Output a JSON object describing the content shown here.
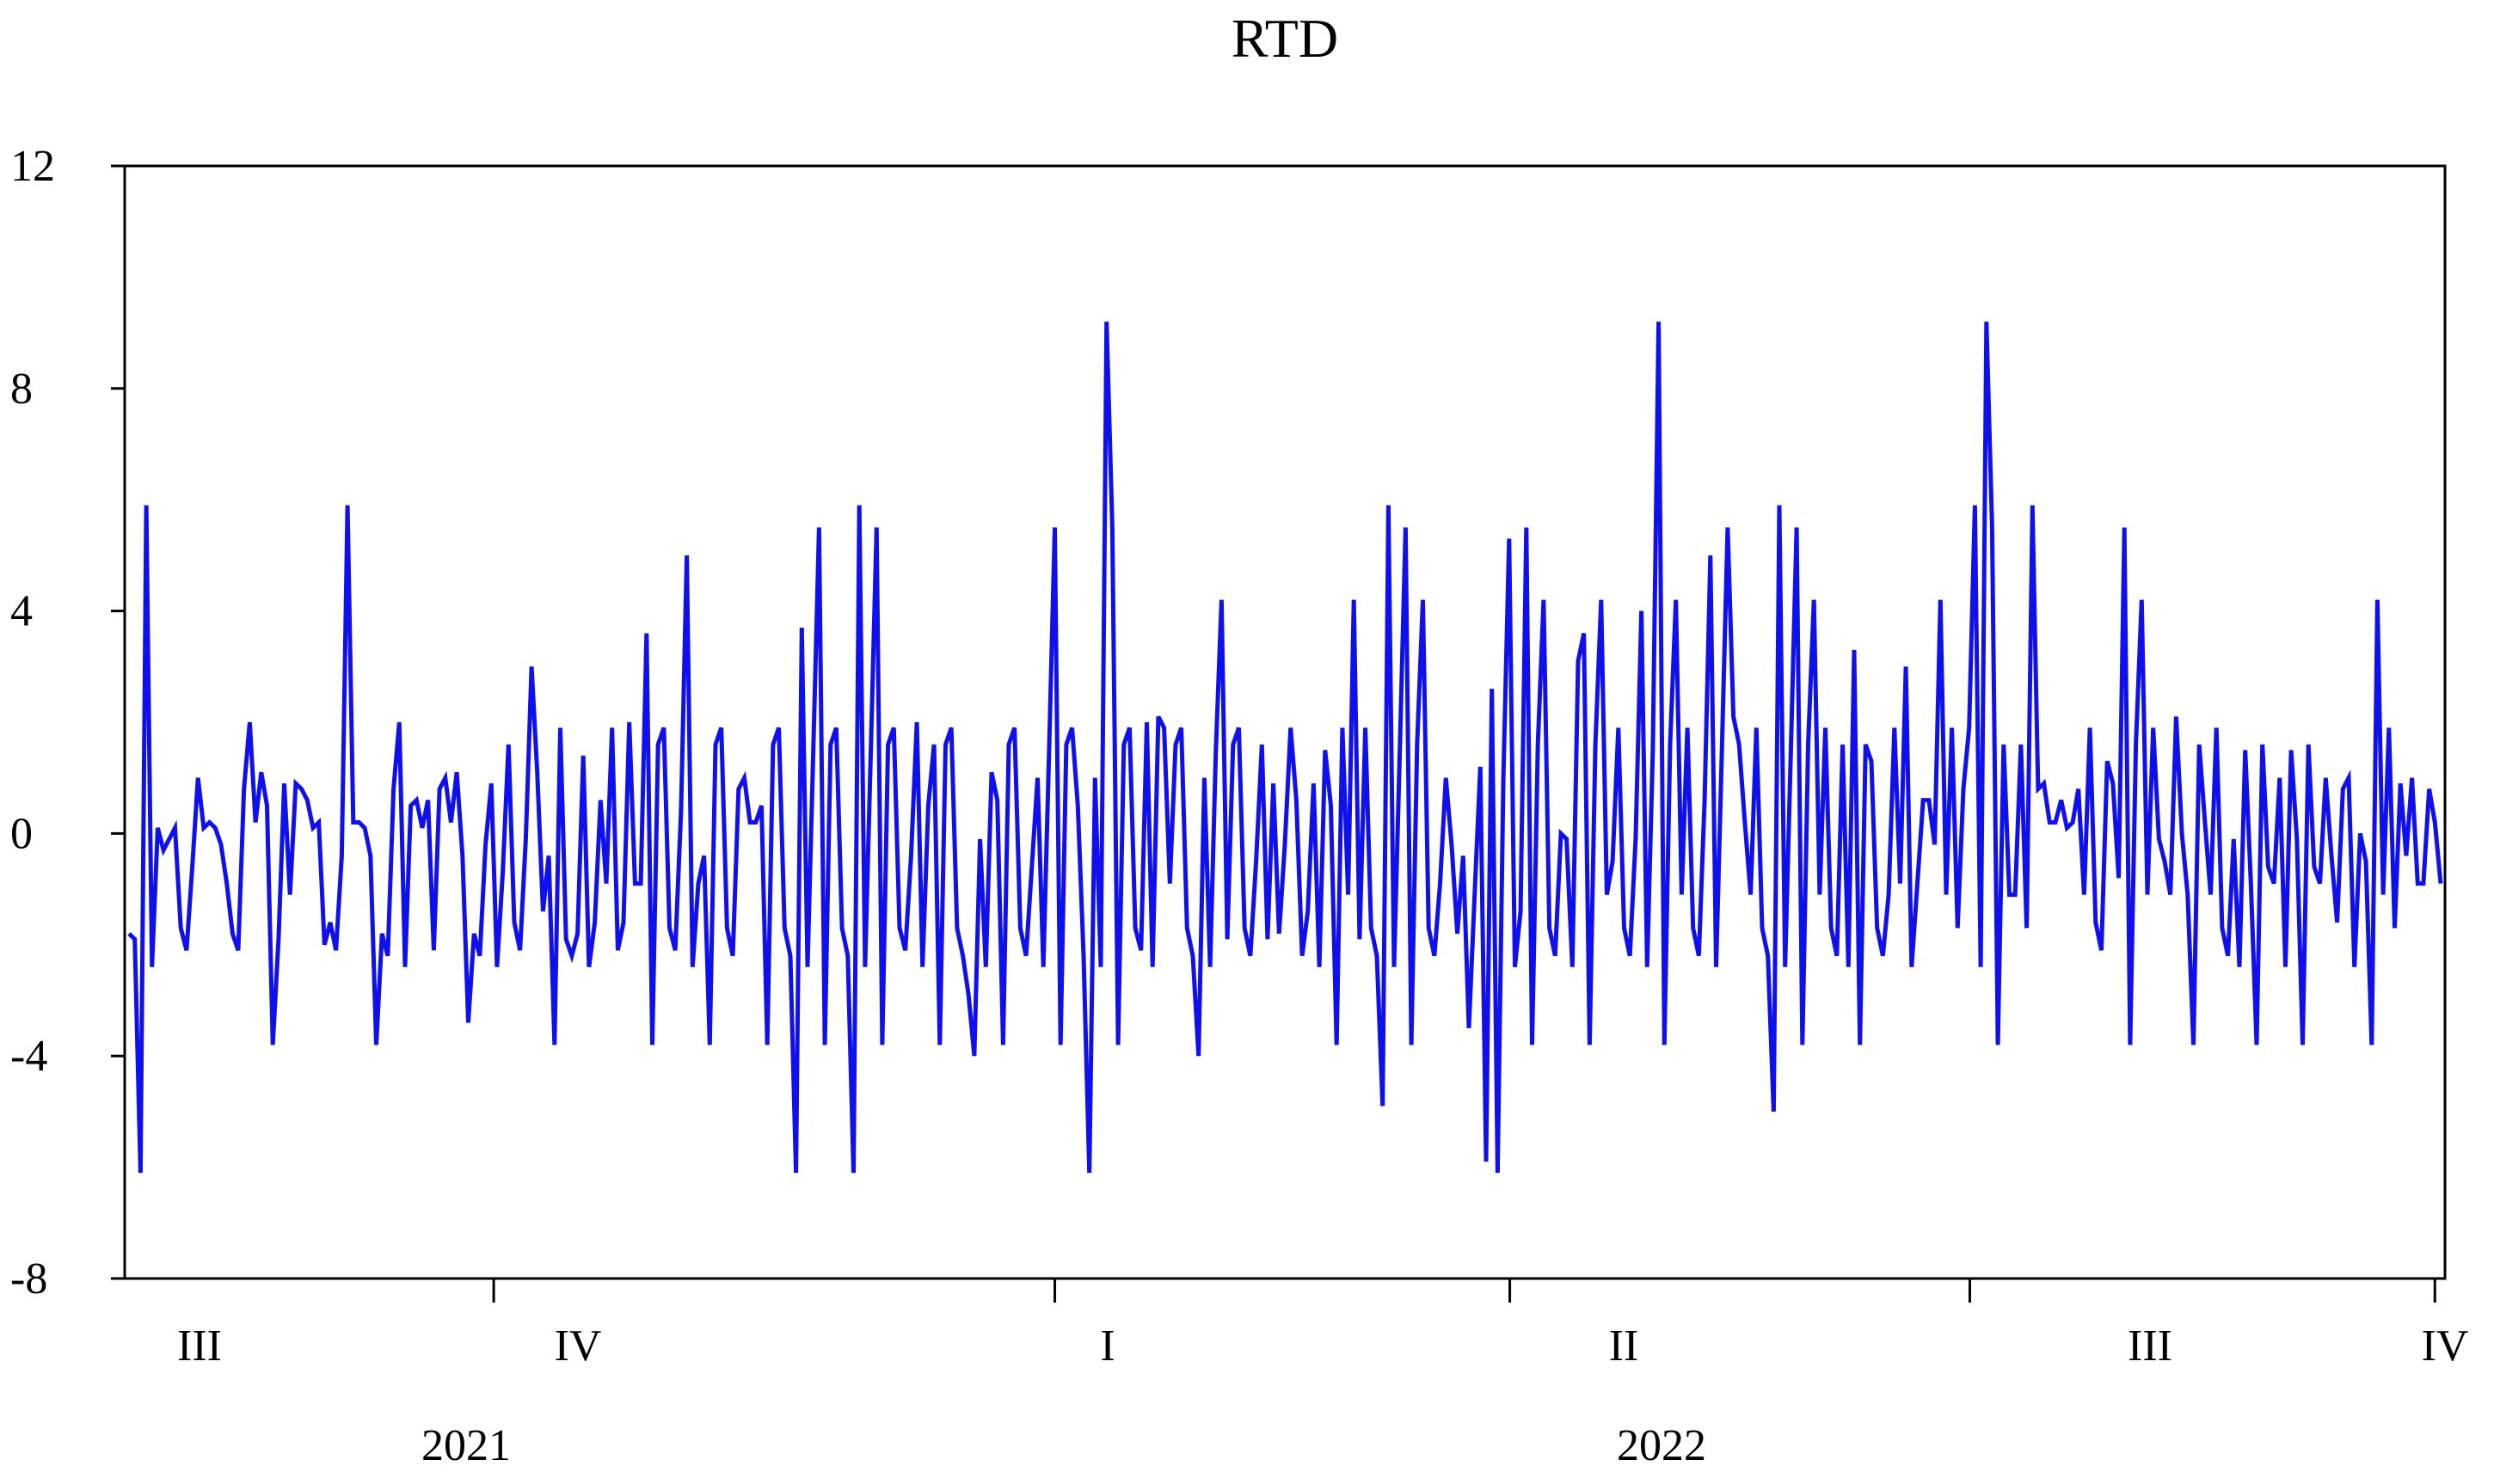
{
  "chart_data": {
    "type": "line",
    "title": "RTD",
    "xlabel": "",
    "ylabel": "",
    "ylim": [
      -8,
      12
    ],
    "yticks": [
      -8,
      -4,
      0,
      4,
      8,
      12
    ],
    "x_start": "2021-07-01",
    "x_end": "2022-10-03",
    "quarter_labels": [
      "III",
      "IV",
      "I",
      "II",
      "III",
      "IV"
    ],
    "year_labels": [
      "2021",
      "2022"
    ],
    "grid": false,
    "legend": "none",
    "colors": {
      "series": "#1010ee",
      "axes": "#000000",
      "background": "#ffffff"
    },
    "series": [
      {
        "values": [
          -1.8,
          -1.9,
          -6.1,
          5.9,
          -2.4,
          0.1,
          -0.3,
          -0.1,
          0.1,
          -1.7,
          -2.1,
          -0.6,
          1.0,
          0.1,
          0.2,
          0.1,
          -0.2,
          -0.9,
          -1.8,
          -2.1,
          0.8,
          2.0,
          0.2,
          1.1,
          0.5,
          -3.8,
          -1.9,
          0.9,
          -1.1,
          0.9,
          0.8,
          0.6,
          0.1,
          0.2,
          -2.0,
          -1.6,
          -2.1,
          -0.4,
          5.9,
          0.2,
          0.2,
          0.1,
          -0.4,
          -3.8,
          -1.8,
          -2.2,
          0.8,
          2.0,
          -2.4,
          0.5,
          0.6,
          0.1,
          0.6,
          -2.1,
          0.8,
          1.0,
          0.2,
          1.1,
          -0.4,
          -3.4,
          -1.8,
          -2.2,
          -0.2,
          0.9,
          -2.4,
          -0.7,
          1.6,
          -1.6,
          -2.1,
          -0.1,
          3.0,
          1.1,
          -1.4,
          -0.4,
          -3.8,
          1.9,
          -1.9,
          -2.2,
          -1.8,
          1.4,
          -2.4,
          -1.6,
          0.6,
          -0.9,
          1.9,
          -2.1,
          -1.6,
          2.0,
          -0.9,
          -0.9,
          3.6,
          -3.8,
          1.6,
          1.9,
          -1.7,
          -2.1,
          0.4,
          5.0,
          -2.4,
          -0.9,
          -0.4,
          -3.8,
          1.6,
          1.9,
          -1.7,
          -2.2,
          0.8,
          1.0,
          0.2,
          0.2,
          0.5,
          -3.8,
          1.6,
          1.9,
          -1.7,
          -2.2,
          -6.1,
          3.7,
          -2.4,
          1.5,
          5.5,
          -3.8,
          1.6,
          1.9,
          -1.7,
          -2.2,
          -6.1,
          5.9,
          -2.4,
          1.5,
          5.5,
          -3.8,
          1.6,
          1.9,
          -1.7,
          -2.1,
          -0.4,
          2.0,
          -2.4,
          0.5,
          1.6,
          -3.8,
          1.6,
          1.9,
          -1.7,
          -2.2,
          -2.9,
          -4.0,
          -0.1,
          -2.4,
          1.1,
          0.6,
          -3.8,
          1.6,
          1.9,
          -1.7,
          -2.2,
          -0.6,
          1.0,
          -2.4,
          1.5,
          5.5,
          -3.8,
          1.6,
          1.9,
          0.5,
          -2.2,
          -6.1,
          1.0,
          -2.4,
          9.2,
          5.5,
          -3.8,
          1.6,
          1.9,
          -1.7,
          -2.1,
          2.0,
          -2.4,
          2.1,
          1.9,
          -0.9,
          1.6,
          1.9,
          -1.7,
          -2.2,
          -4.0,
          1.0,
          -2.4,
          1.5,
          4.2,
          -1.9,
          1.6,
          1.9,
          -1.7,
          -2.2,
          -0.5,
          1.6,
          -1.9,
          0.9,
          -1.8,
          -0.2,
          1.9,
          0.6,
          -2.2,
          -1.4,
          0.9,
          -2.4,
          1.5,
          0.5,
          -3.8,
          1.9,
          -1.1,
          4.2,
          -1.9,
          1.9,
          -1.7,
          -2.2,
          -4.9,
          5.9,
          -2.4,
          1.5,
          5.5,
          -3.8,
          1.6,
          4.2,
          -1.7,
          -2.2,
          -0.9,
          1.0,
          -0.2,
          -1.8,
          -0.4,
          -3.5,
          -1.1,
          1.2,
          -5.9,
          2.6,
          -6.1,
          1.0,
          5.3,
          -2.4,
          -1.4,
          5.5,
          -3.8,
          1.6,
          4.2,
          -1.7,
          -2.2,
          0.0,
          -0.1,
          -2.4,
          3.1,
          3.6,
          -3.8,
          1.6,
          4.2,
          -1.1,
          -0.5,
          1.9,
          -1.7,
          -2.2,
          -0.1,
          4.0,
          -2.4,
          1.5,
          9.2,
          -3.8,
          1.6,
          4.2,
          -1.1,
          1.9,
          -1.7,
          -2.2,
          0.6,
          5.0,
          -2.4,
          1.5,
          5.5,
          2.1,
          1.6,
          0.2,
          -1.1,
          1.9,
          -1.7,
          -2.2,
          -5.0,
          5.9,
          -2.4,
          1.5,
          5.5,
          -3.8,
          1.6,
          4.2,
          -1.1,
          1.9,
          -1.7,
          -2.2,
          1.6,
          -2.4,
          3.3,
          -3.8,
          1.6,
          1.3,
          -1.7,
          -2.2,
          -1.1,
          1.9,
          -0.9,
          3.0,
          -2.4,
          -0.9,
          0.6,
          0.6,
          -0.2,
          4.2,
          -1.1,
          1.9,
          -1.7,
          0.8,
          1.9,
          5.9,
          -2.4,
          9.2,
          5.5,
          -3.8,
          1.6,
          -1.1,
          -1.1,
          1.6,
          -1.7,
          5.9,
          0.8,
          0.9,
          0.2,
          0.2,
          0.6,
          0.1,
          0.2,
          0.8,
          -1.1,
          1.9,
          -1.6,
          -2.1,
          1.3,
          0.9,
          -0.8,
          5.5,
          -3.8,
          1.6,
          4.2,
          -1.1,
          1.9,
          -0.1,
          -0.5,
          -1.1,
          2.1,
          0.0,
          -1.1,
          -3.8,
          1.6,
          0.2,
          -1.1,
          1.9,
          -1.7,
          -2.2,
          -0.1,
          -2.4,
          1.5,
          -0.9,
          -3.8,
          1.6,
          -0.6,
          -0.9,
          1.0,
          -2.4,
          1.5,
          -0.1,
          -3.8,
          1.6,
          -0.6,
          -0.9,
          1.0,
          -0.4,
          -1.6,
          0.8,
          1.0,
          -2.4,
          0.0,
          -0.5,
          -3.8,
          4.2,
          -1.1,
          1.9,
          -1.7,
          0.9,
          -0.4,
          1.0,
          -0.9,
          -0.9,
          0.8,
          0.2,
          -0.9
        ]
      }
    ]
  }
}
